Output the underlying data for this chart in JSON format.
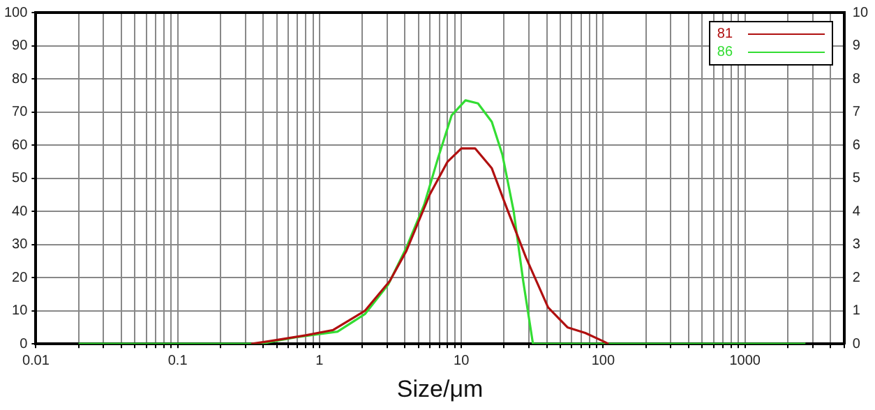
{
  "chart_data": {
    "type": "line",
    "xlabel": "Size/μm",
    "log": "x",
    "grid": true,
    "legend": "top right",
    "marker": "none",
    "line_style": "solid",
    "xlim": [
      0.01,
      5000
    ],
    "xticks": [
      0.01,
      {
        "value": 0.02,
        "label": null
      },
      {
        "value": 0.03,
        "label": null
      },
      {
        "value": 0.04,
        "label": null
      },
      {
        "value": 0.05,
        "label": null
      },
      {
        "value": 0.06,
        "label": null
      },
      {
        "value": 0.07,
        "label": null
      },
      {
        "value": 0.08,
        "label": null
      },
      {
        "value": 0.09,
        "label": null
      },
      0.1,
      {
        "value": 0.2,
        "label": null
      },
      {
        "value": 0.3,
        "label": null
      },
      {
        "value": 0.4,
        "label": null
      },
      {
        "value": 0.5,
        "label": null
      },
      {
        "value": 0.6,
        "label": null
      },
      {
        "value": 0.7,
        "label": null
      },
      {
        "value": 0.8,
        "label": null
      },
      {
        "value": 0.9,
        "label": null
      },
      1,
      {
        "value": 2,
        "label": null
      },
      {
        "value": 3,
        "label": null
      },
      {
        "value": 4,
        "label": null
      },
      {
        "value": 5,
        "label": null
      },
      {
        "value": 6,
        "label": null
      },
      {
        "value": 7,
        "label": null
      },
      {
        "value": 8,
        "label": null
      },
      {
        "value": 9,
        "label": null
      },
      10,
      {
        "value": 20,
        "label": null
      },
      {
        "value": 30,
        "label": null
      },
      {
        "value": 40,
        "label": null
      },
      {
        "value": 50,
        "label": null
      },
      {
        "value": 60,
        "label": null
      },
      {
        "value": 70,
        "label": null
      },
      {
        "value": 80,
        "label": null
      },
      {
        "value": 90,
        "label": null
      },
      100,
      {
        "value": 200,
        "label": null
      },
      {
        "value": 300,
        "label": null
      },
      {
        "value": 400,
        "label": null
      },
      {
        "value": 500,
        "label": null
      },
      {
        "value": 600,
        "label": null
      },
      {
        "value": 700,
        "label": null
      },
      {
        "value": 800,
        "label": null
      },
      {
        "value": 900,
        "label": null
      },
      1000,
      {
        "value": 2000,
        "label": null
      },
      {
        "value": 3000,
        "label": null
      },
      {
        "value": 4000,
        "label": null
      },
      {
        "value": 5000,
        "label": null
      }
    ],
    "ylim": [
      0,
      100
    ],
    "yticks": [
      0,
      10,
      20,
      30,
      40,
      50,
      60,
      70,
      80,
      90,
      100
    ],
    "y2lim": [
      0,
      10
    ],
    "y2ticks": [
      0,
      1,
      2,
      3,
      4,
      5,
      6,
      7,
      8,
      9,
      10
    ],
    "series": [
      {
        "name": "81",
        "color": "#b01010",
        "x": [
          0.33,
          0.44,
          0.8,
          1.25,
          2.09,
          3.13,
          4.09,
          5.98,
          8.0,
          10,
          12.5,
          16.4,
          20.9,
          28.6,
          40.9,
          56,
          74.8,
          100,
          109
        ],
        "values": [
          0,
          0.8,
          2.6,
          4.2,
          10,
          19,
          28,
          45,
          55,
          59,
          59,
          53,
          41,
          26,
          11,
          5,
          3.3,
          0.8,
          0
        ]
      },
      {
        "name": "86",
        "color": "#33dd33",
        "x": [
          0.02,
          0.4,
          0.43,
          0.68,
          1.34,
          2.09,
          3.06,
          4.09,
          5.47,
          6.84,
          8.55,
          10.7,
          13.1,
          16.4,
          19.5,
          23.4,
          27.3,
          32,
          2670
        ],
        "values": [
          0,
          0,
          0.4,
          2,
          3.7,
          9,
          18,
          29,
          42,
          56,
          69,
          73.5,
          72.6,
          67,
          57,
          40,
          19,
          0,
          0
        ]
      }
    ]
  }
}
